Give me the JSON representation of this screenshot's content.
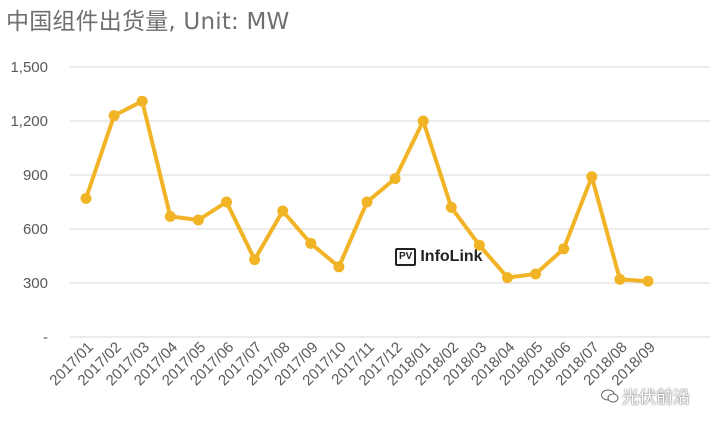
{
  "title": "中国组件出货量, Unit: MW",
  "logo": {
    "badge": "PV",
    "text": "InfoLink"
  },
  "watermark": {
    "text": "光伏前沿",
    "icon": "wechat-icon"
  },
  "colors": {
    "line": "#F2B427",
    "grid": "#D9D9D9",
    "tick_text": "#595959"
  },
  "chart_data": {
    "type": "line",
    "title": "中国组件出货量, Unit: MW",
    "xlabel": "",
    "ylabel": "",
    "ylim": [
      0,
      1500
    ],
    "yticks": [
      0,
      300,
      600,
      900,
      1200,
      1500
    ],
    "ytick_labels": [
      "-",
      "300",
      "600",
      "900",
      "1,200",
      "1,500"
    ],
    "grid": true,
    "categories": [
      "2017/01",
      "2017/02",
      "2017/03",
      "2017/04",
      "2017/05",
      "2017/06",
      "2017/07",
      "2017/08",
      "2017/09",
      "2017/10",
      "2017/11",
      "2017/12",
      "2018/01",
      "2018/02",
      "2018/03",
      "2018/04",
      "2018/05",
      "2018/06",
      "2018/07",
      "2018/08",
      "2018/09"
    ],
    "series": [
      {
        "values": [
          770,
          1230,
          1310,
          670,
          650,
          750,
          430,
          700,
          520,
          390,
          750,
          880,
          1200,
          720,
          510,
          330,
          350,
          490,
          890,
          320,
          310
        ]
      }
    ]
  }
}
